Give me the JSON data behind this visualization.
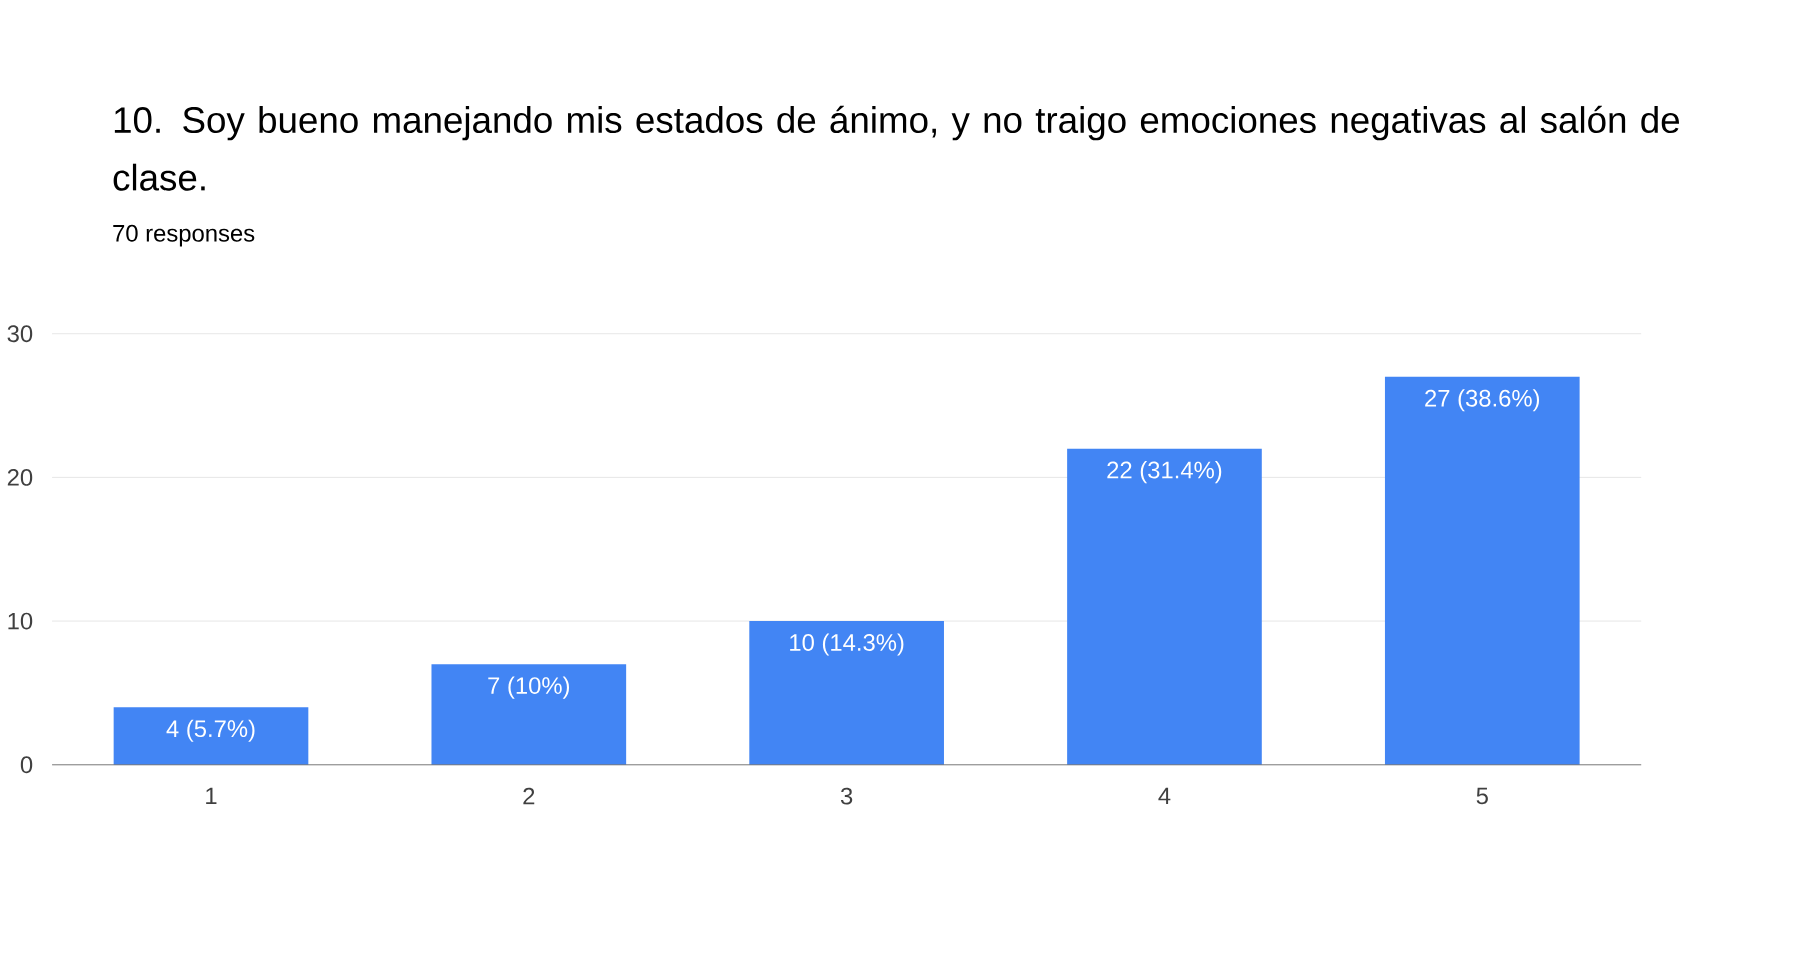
{
  "chart_data": {
    "type": "bar",
    "title": "10. Soy bueno manejando mis estados de ánimo, y no traigo emociones negativas al salón de clase.",
    "subtitle": "70 responses",
    "categories": [
      "1",
      "2",
      "3",
      "4",
      "5"
    ],
    "values": [
      4,
      7,
      10,
      22,
      27
    ],
    "value_labels": [
      "4 (5.7%)",
      "7 (10%)",
      "10 (14.3%)",
      "22 (31.4%)",
      "27 (38.6%)"
    ],
    "color": "#4285f4",
    "ylim": [
      0,
      30
    ],
    "yticks": [
      0,
      10,
      20,
      30
    ],
    "grid": "y"
  }
}
